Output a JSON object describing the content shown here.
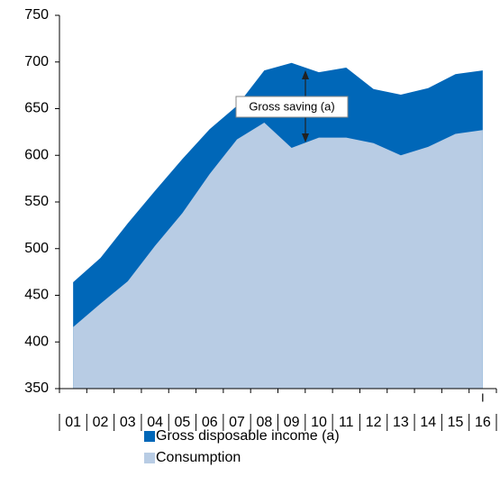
{
  "chart_data": {
    "type": "area",
    "categories": [
      "01",
      "02",
      "03",
      "04",
      "05",
      "06",
      "07",
      "08",
      "09",
      "10",
      "11",
      "12",
      "13",
      "14",
      "15",
      "16"
    ],
    "period_label": "I",
    "series": [
      {
        "name": "Gross disposable income (a)",
        "color": "#0067b8",
        "values": [
          464,
          490,
          527,
          562,
          596,
          628,
          653,
          691,
          699,
          689,
          694,
          671,
          665,
          672,
          687,
          691
        ]
      },
      {
        "name": "Consumption",
        "color": "#b8cce4",
        "values": [
          416,
          441,
          465,
          503,
          538,
          580,
          617,
          635,
          608,
          619,
          619,
          613,
          600,
          609,
          623,
          627
        ]
      }
    ],
    "annotation": "Gross saving (a)",
    "ylim": [
      350,
      750
    ],
    "yticks": [
      350,
      400,
      450,
      500,
      550,
      600,
      650,
      700,
      750
    ]
  }
}
